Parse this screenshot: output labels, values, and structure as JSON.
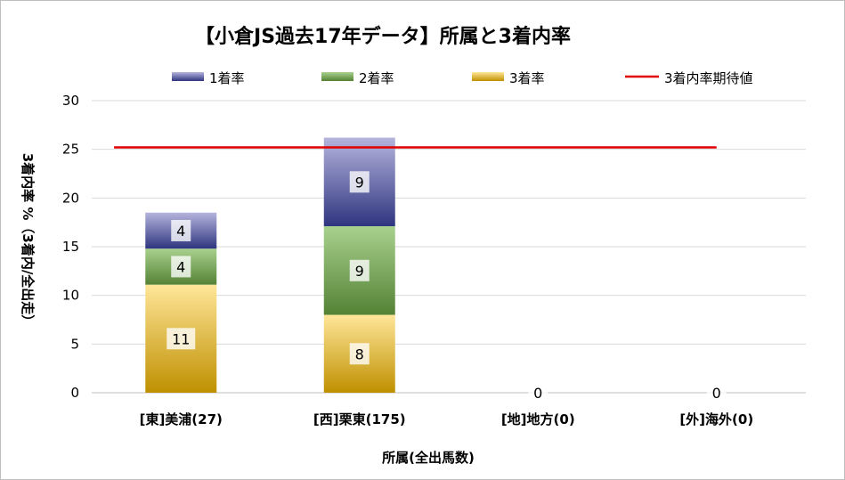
{
  "chart_data": {
    "type": "bar",
    "stacked": true,
    "title": "【小倉JS過去17年データ】所属と3着内率",
    "xlabel": "所属(全出馬数)",
    "ylabel": "3着内率 %（3着内/全出走）",
    "ylim": [
      0,
      30
    ],
    "yticks": [
      0,
      5,
      10,
      15,
      20,
      25,
      30
    ],
    "grid": true,
    "legend_position": "top",
    "categories": [
      "[東]美浦(27)",
      "[西]栗東(175)",
      "[地]地方(0)",
      "[外]海外(0)"
    ],
    "series": [
      {
        "name": "3着率",
        "values": [
          11.1,
          8.0,
          0,
          0
        ],
        "labels": [
          "11",
          "8",
          "0",
          "0"
        ],
        "color_top": "#ffe699",
        "color_bottom": "#bf9000"
      },
      {
        "name": "2着率",
        "values": [
          3.7,
          9.1,
          0,
          0
        ],
        "labels": [
          "4",
          "9",
          "",
          ""
        ],
        "color_top": "#a9d18e",
        "color_bottom": "#548235"
      },
      {
        "name": "1着率",
        "values": [
          3.7,
          9.1,
          0,
          0
        ],
        "labels": [
          "4",
          "9",
          "",
          ""
        ],
        "color_top": "#b4b4dc",
        "color_bottom": "#2f3580"
      }
    ],
    "reference_line": {
      "name": "3着内率期待値",
      "value": 25.2,
      "color": "#e00000"
    }
  }
}
